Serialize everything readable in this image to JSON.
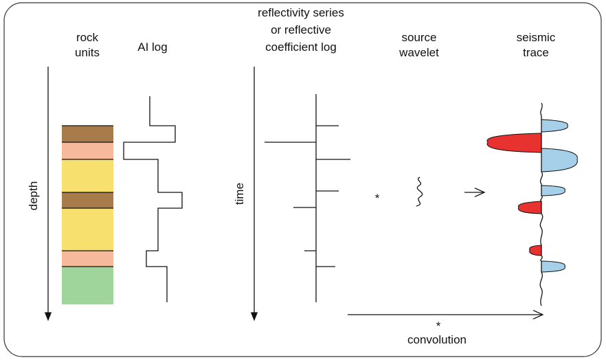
{
  "columns": [
    {
      "label": [
        "rock",
        "units"
      ]
    },
    {
      "label": [
        "AI log"
      ]
    },
    {
      "label": [
        "reflectivity series",
        "or reflective",
        "coefficient log"
      ]
    },
    {
      "label": [
        "source",
        "wavelet"
      ]
    },
    {
      "label": [
        "seismic",
        "trace"
      ]
    }
  ],
  "axes": {
    "depth": "depth",
    "time": "time"
  },
  "operators": [
    "*",
    "*"
  ],
  "convolution": "convolution"
}
